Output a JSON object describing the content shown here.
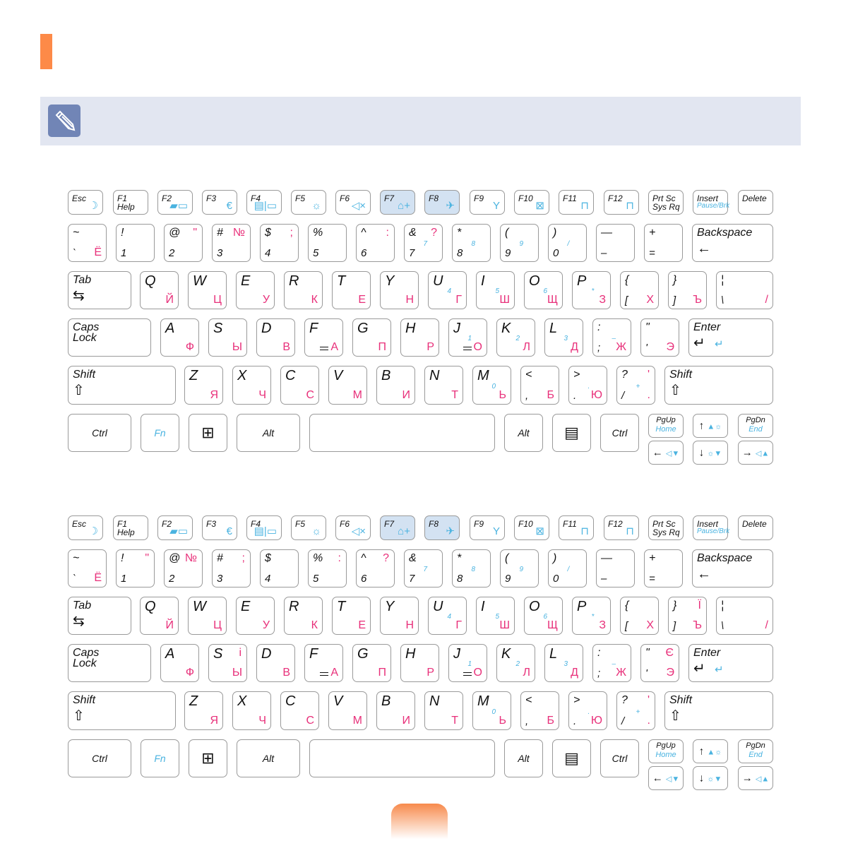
{
  "colors": {
    "accent": "#fd8a48",
    "note_band": "#e2e6f1",
    "note_icon": "#7185b6",
    "russian_letters": "#e8307a",
    "fn_functions": "#4ab3e0",
    "highlight_keys": "#d3e2f2"
  },
  "note": {
    "icon": "pencil-icon"
  },
  "keyboards": [
    {
      "fn": [
        {
          "t": "Esc",
          "icon": "moon-icon"
        },
        {
          "t": "F1",
          "b": "Help"
        },
        {
          "t": "F2",
          "icon": "battery-icon"
        },
        {
          "t": "F3",
          "icon": "euro-icon"
        },
        {
          "t": "F4",
          "icon": "display-switch-icon"
        },
        {
          "t": "F5",
          "icon": "brightness-icon"
        },
        {
          "t": "F6",
          "icon": "mute-icon"
        },
        {
          "t": "F7",
          "icon": "presentation-icon",
          "hl": true
        },
        {
          "t": "F8",
          "icon": "etiquette-mode-icon",
          "hl": true
        },
        {
          "t": "F9",
          "icon": "wireless-icon"
        },
        {
          "t": "F10",
          "icon": "touchpad-icon"
        },
        {
          "t": "F11",
          "icon": "num-lock-icon"
        },
        {
          "t": "F12",
          "icon": "scroll-lock-icon"
        },
        {
          "t": "Prt Sc",
          "b": "Sys Rq"
        },
        {
          "t": "Insert",
          "sub": "Pause/Brk"
        },
        {
          "t": "Delete"
        }
      ],
      "num": [
        {
          "t": "~",
          "b": "`",
          "pb": "Ё"
        },
        {
          "t": "!",
          "b": "1"
        },
        {
          "t": "@",
          "b": "2",
          "pt": "\""
        },
        {
          "t": "#",
          "b": "3",
          "pt": "№"
        },
        {
          "t": "$",
          "b": "4",
          "pt": ";"
        },
        {
          "t": "%",
          "b": "5"
        },
        {
          "t": "^",
          "b": "6",
          "pt": ":"
        },
        {
          "t": "&",
          "b": "7",
          "pt": "?",
          "m": "7"
        },
        {
          "t": "*",
          "b": "8",
          "m": "8"
        },
        {
          "t": "(",
          "b": "9",
          "m": "9"
        },
        {
          "t": ")",
          "b": "0",
          "m": "/"
        },
        {
          "t": "—",
          "b": "–"
        },
        {
          "t": "+",
          "b": "="
        },
        {
          "t": "Backspace",
          "arrow": "←"
        }
      ],
      "qwer": [
        {
          "t": "Tab",
          "arrow": "⇆"
        },
        {
          "t": "Q",
          "pb": "Й"
        },
        {
          "t": "W",
          "pb": "Ц"
        },
        {
          "t": "E",
          "pb": "У"
        },
        {
          "t": "R",
          "pb": "К"
        },
        {
          "t": "T",
          "pb": "Е"
        },
        {
          "t": "Y",
          "pb": "Н"
        },
        {
          "t": "U",
          "m": "4",
          "pb": "Г"
        },
        {
          "t": "I",
          "m": "5",
          "pb": "Ш"
        },
        {
          "t": "O",
          "m": "6",
          "pb": "Щ"
        },
        {
          "t": "P",
          "m": "*",
          "pb": "З"
        },
        {
          "t": "{",
          "b": "[",
          "pb": "Х"
        },
        {
          "t": "}",
          "b": "]",
          "pb": "Ъ"
        },
        {
          "t": "¦",
          "b": "\\",
          "pb": "/"
        }
      ],
      "asdf": [
        {
          "t": "Caps",
          "b2": "Lock"
        },
        {
          "t": "A",
          "pb": "Ф"
        },
        {
          "t": "S",
          "pb": "Ы"
        },
        {
          "t": "D",
          "pb": "В"
        },
        {
          "t": "F",
          "pb": "А",
          "ul": true
        },
        {
          "t": "G",
          "pb": "П"
        },
        {
          "t": "H",
          "pb": "Р"
        },
        {
          "t": "J",
          "m": "1",
          "pb": "О",
          "ul": true
        },
        {
          "t": "K",
          "m": "2",
          "pb": "Л"
        },
        {
          "t": "L",
          "m": "3",
          "pb": "Д"
        },
        {
          "t": ":",
          "b": ";",
          "m": "–",
          "pb": "Ж"
        },
        {
          "t": "\"",
          "b": "'",
          "pb": "Э"
        },
        {
          "t": "Enter",
          "arrow": "↵"
        }
      ],
      "zxcv": [
        {
          "t": "Shift",
          "arrow": "⇧"
        },
        {
          "t": "Z",
          "pb": "Я"
        },
        {
          "t": "X",
          "pb": "Ч"
        },
        {
          "t": "C",
          "pb": "С"
        },
        {
          "t": "V",
          "pb": "М"
        },
        {
          "t": "B",
          "pb": "И"
        },
        {
          "t": "N",
          "pb": "Т"
        },
        {
          "t": "M",
          "m": "0",
          "pb": "Ь"
        },
        {
          "t": "<",
          "b": ",",
          "pb": "Б"
        },
        {
          "t": ">",
          "b": ".",
          "m": ".",
          "pb": "Ю"
        },
        {
          "t": "?",
          "b": "/",
          "m": "+",
          "pt": "'",
          "pb": "."
        },
        {
          "t": "Shift",
          "arrow": "⇧"
        }
      ],
      "bottom": [
        {
          "c": "Ctrl"
        },
        {
          "c": "Fn",
          "blue": true
        },
        {
          "icon": "windows-icon"
        },
        {
          "c": "Alt"
        },
        {
          "c": ""
        },
        {
          "c": "Alt"
        },
        {
          "icon": "menu-icon"
        },
        {
          "c": "Ctrl"
        },
        {
          "t": "PgUp",
          "sub": "Home"
        },
        {
          "icon": "up-brightness-up-icon"
        },
        {
          "t": "PgDn",
          "sub": "End"
        },
        {
          "icon": "left-volume-down-icon"
        },
        {
          "icon": "down-brightness-down-icon"
        },
        {
          "icon": "right-volume-up-icon"
        }
      ]
    },
    {
      "fn": [
        {
          "t": "Esc",
          "icon": "moon-icon"
        },
        {
          "t": "F1",
          "b": "Help"
        },
        {
          "t": "F2",
          "icon": "battery-icon"
        },
        {
          "t": "F3",
          "icon": "euro-icon"
        },
        {
          "t": "F4",
          "icon": "display-switch-icon"
        },
        {
          "t": "F5",
          "icon": "brightness-icon"
        },
        {
          "t": "F6",
          "icon": "mute-icon"
        },
        {
          "t": "F7",
          "icon": "presentation-icon",
          "hl": true
        },
        {
          "t": "F8",
          "icon": "etiquette-mode-icon",
          "hl": true
        },
        {
          "t": "F9",
          "icon": "wireless-icon"
        },
        {
          "t": "F10",
          "icon": "touchpad-icon"
        },
        {
          "t": "F11",
          "icon": "num-lock-icon"
        },
        {
          "t": "F12",
          "icon": "scroll-lock-icon"
        },
        {
          "t": "Prt Sc",
          "b": "Sys Rq"
        },
        {
          "t": "Insert",
          "sub": "Pause/Brk"
        },
        {
          "t": "Delete"
        }
      ],
      "num": [
        {
          "t": "~",
          "b": "`",
          "pb": "Ё"
        },
        {
          "t": "!",
          "b": "1",
          "pt": "\""
        },
        {
          "t": "@",
          "b": "2",
          "pt": "№"
        },
        {
          "t": "#",
          "b": "3",
          "pt": ";"
        },
        {
          "t": "$",
          "b": "4"
        },
        {
          "t": "%",
          "b": "5",
          "pt": ":"
        },
        {
          "t": "^",
          "b": "6",
          "pt": "?"
        },
        {
          "t": "&",
          "b": "7",
          "m": "7"
        },
        {
          "t": "*",
          "b": "8",
          "m": "8"
        },
        {
          "t": "(",
          "b": "9",
          "m": "9"
        },
        {
          "t": ")",
          "b": "0",
          "m": "/"
        },
        {
          "t": "—",
          "b": "–"
        },
        {
          "t": "+",
          "b": "="
        },
        {
          "t": "Backspace",
          "arrow": "←"
        }
      ],
      "qwer": [
        {
          "t": "Tab",
          "arrow": "⇆"
        },
        {
          "t": "Q",
          "pb": "Й"
        },
        {
          "t": "W",
          "pb": "Ц"
        },
        {
          "t": "E",
          "pb": "У"
        },
        {
          "t": "R",
          "pb": "К"
        },
        {
          "t": "T",
          "pb": "Е"
        },
        {
          "t": "Y",
          "pb": "Н"
        },
        {
          "t": "U",
          "m": "4",
          "pb": "Г"
        },
        {
          "t": "I",
          "m": "5",
          "pb": "Ш"
        },
        {
          "t": "O",
          "m": "6",
          "pb": "Щ"
        },
        {
          "t": "P",
          "m": "*",
          "pb": "З"
        },
        {
          "t": "{",
          "b": "[",
          "pb": "Х"
        },
        {
          "t": "}",
          "b": "]",
          "pt": "Ї",
          "pb": "Ъ"
        },
        {
          "t": "¦",
          "b": "\\",
          "pb": "/"
        }
      ],
      "asdf": [
        {
          "t": "Caps",
          "b2": "Lock"
        },
        {
          "t": "A",
          "pb": "Ф"
        },
        {
          "t": "S",
          "pt": "і",
          "pb": "Ы"
        },
        {
          "t": "D",
          "pb": "В"
        },
        {
          "t": "F",
          "pb": "А",
          "ul": true
        },
        {
          "t": "G",
          "pb": "П"
        },
        {
          "t": "H",
          "pb": "Р"
        },
        {
          "t": "J",
          "m": "1",
          "pb": "О",
          "ul": true
        },
        {
          "t": "K",
          "m": "2",
          "pb": "Л"
        },
        {
          "t": "L",
          "m": "3",
          "pb": "Д"
        },
        {
          "t": ":",
          "b": ";",
          "m": "–",
          "pb": "Ж"
        },
        {
          "t": "\"",
          "b": "'",
          "pt": "Є",
          "pb": "Э"
        },
        {
          "t": "Enter",
          "arrow": "↵"
        }
      ],
      "zxcv": [
        {
          "t": "Shift",
          "arrow": "⇧"
        },
        {
          "t": "Z",
          "pb": "Я"
        },
        {
          "t": "X",
          "pb": "Ч"
        },
        {
          "t": "C",
          "pb": "С"
        },
        {
          "t": "V",
          "pb": "М"
        },
        {
          "t": "B",
          "pb": "И"
        },
        {
          "t": "N",
          "pb": "Т"
        },
        {
          "t": "M",
          "m": "0",
          "pb": "Ь"
        },
        {
          "t": "<",
          "b": ",",
          "pb": "Б"
        },
        {
          "t": ">",
          "b": ".",
          "m": ".",
          "pb": "Ю"
        },
        {
          "t": "?",
          "b": "/",
          "m": "+",
          "pt": "'",
          "pb": "."
        },
        {
          "t": "Shift",
          "arrow": "⇧"
        }
      ],
      "bottom": [
        {
          "c": "Ctrl"
        },
        {
          "c": "Fn",
          "blue": true
        },
        {
          "icon": "windows-icon"
        },
        {
          "c": "Alt"
        },
        {
          "c": ""
        },
        {
          "c": "Alt"
        },
        {
          "icon": "menu-icon"
        },
        {
          "c": "Ctrl"
        },
        {
          "t": "PgUp",
          "sub": "Home"
        },
        {
          "icon": "up-brightness-up-icon"
        },
        {
          "t": "PgDn",
          "sub": "End"
        },
        {
          "icon": "left-volume-down-icon"
        },
        {
          "icon": "down-brightness-down-icon"
        },
        {
          "icon": "right-volume-up-icon"
        }
      ]
    }
  ]
}
